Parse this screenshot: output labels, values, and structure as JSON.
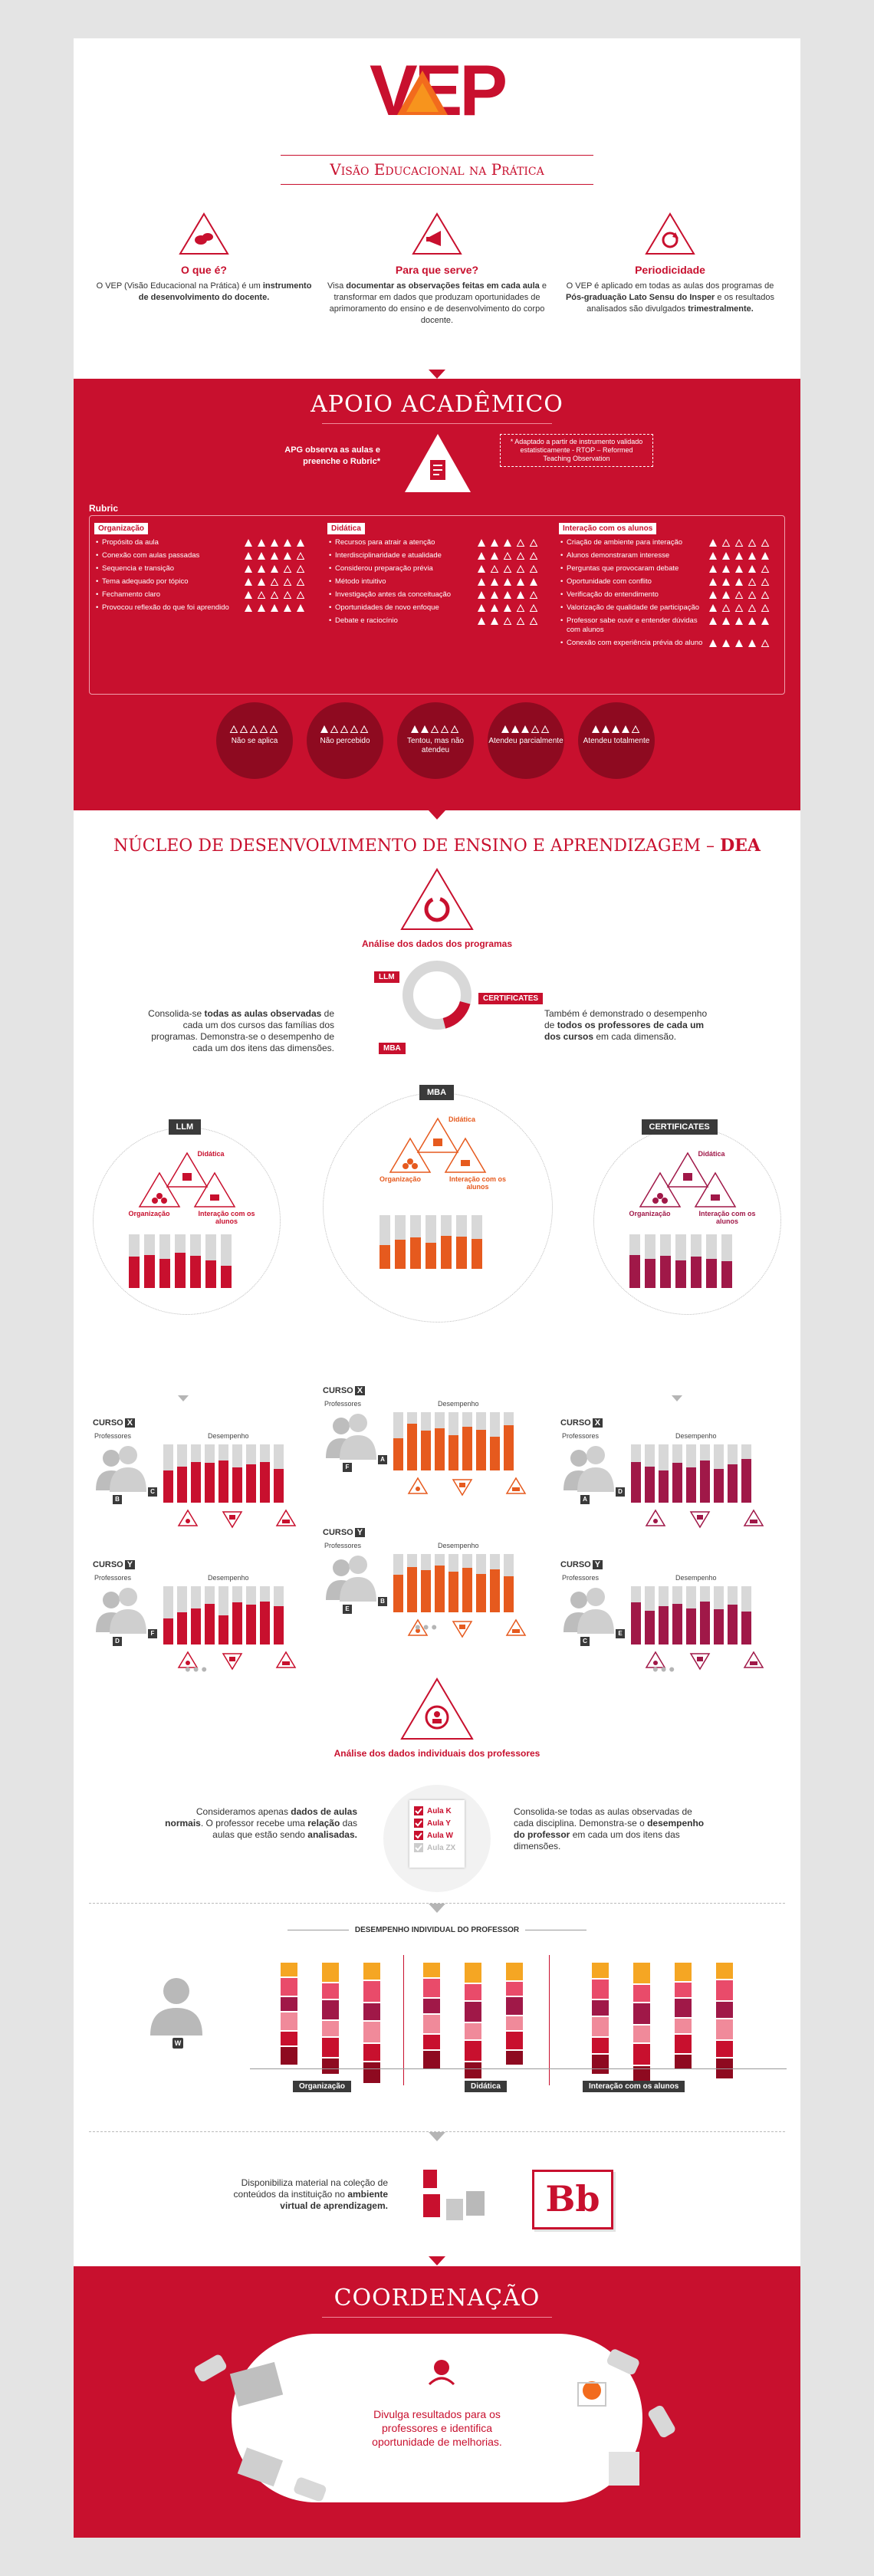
{
  "header": {
    "logo_text": "VEP",
    "subtitle": "Visão Educacional na Prática",
    "columns": [
      {
        "title": "O que é?",
        "text_plain": "O VEP (Visão Educacional na Prática) é um",
        "text_bold": "instrumento de desenvolvimento do docente.",
        "icon": "chat-bubbles-icon"
      },
      {
        "title": "Para que serve?",
        "text_1": "Visa",
        "text_bold": "documentar as observações feitas em cada aula",
        "text_2": "e transformar em dados que produzam oportunidades de aprimoramento do ensino e de desenvolvimento do corpo docente.",
        "icon": "megaphone-icon"
      },
      {
        "title": "Periodicidade",
        "text_1": "O VEP é aplicado em todas as aulas dos programas de",
        "text_bold": "Pós-graduação Lato Sensu do Insper",
        "text_2": "e os resultados analisados são divulgados",
        "text_bold2": "trimestralmente.",
        "icon": "cycle-icon"
      }
    ]
  },
  "apoio": {
    "title": "APOIO ACADÊMICO",
    "apg_text": "APG observa as aulas e preenche o Rubric*",
    "note": "* Adaptado a partir de instrumento validado estatisticamente - RTOP – Reformed Teaching Observation",
    "rubric_label": "Rubric",
    "columns": [
      {
        "header": "Organização",
        "items": [
          "Propósito da aula",
          "Conexão com aulas passadas",
          "Sequencia e transição",
          "Tema adequado por tópico",
          "Fechamento claro",
          "Provocou reflexão do que foi aprendido"
        ]
      },
      {
        "header": "Didática",
        "items": [
          "Recursos para atrair a atenção",
          "Interdisciplinaridade e atualidade",
          "Considerou preparação prévia",
          "Método intuitivo",
          "Investigação antes da conceituação",
          "Oportunidades de novo enfoque",
          "Debate e raciocínio"
        ]
      },
      {
        "header": "Interação com os alunos",
        "items": [
          "Criação de ambiente para interação",
          "Alunos demonstraram interesse",
          "Perguntas que provocaram debate",
          "Oportunidade com conflito",
          "Verificação do entendimento",
          "Valorização de qualidade de participação",
          "Professor sabe ouvir e entender dúvidas com alunos",
          "Conexão com experiência prévia do aluno"
        ]
      }
    ],
    "scale": [
      "Não se aplica",
      "Não percebido",
      "Tentou, mas não atendeu",
      "Atendeu parcialmente",
      "Atendeu totalmente"
    ]
  },
  "dea": {
    "title_plain": "NÚCLEO DE DESENVOLVIMENTO DE ENSINO E APRENDIZAGEM –",
    "title_bold": "DEA",
    "programs_title": "Análise dos dados dos programas",
    "ring_labels": [
      "LLM",
      "CERTIFICATES",
      "MBA"
    ],
    "left_text_1": "Consolida-se",
    "left_text_bold": "todas as aulas observadas",
    "left_text_2": "de cada um dos cursos das famílias dos programas. Demonstra-se o desempenho de cada um dos itens das dimensões.",
    "right_text_1": "Também é demonstrado o desempenho de",
    "right_text_bold": "todos os professores de cada um dos cursos",
    "right_text_2": "em cada dimensão.",
    "programs": [
      {
        "name": "LLM",
        "dims": [
          "Didática",
          "Organização",
          "Interação com os alunos"
        ]
      },
      {
        "name": "MBA",
        "dims": [
          "Didática",
          "Organização",
          "Interação com os alunos"
        ]
      },
      {
        "name": "CERTIFICATES",
        "dims": [
          "Didática",
          "Organização",
          "Interação com os alunos"
        ]
      }
    ],
    "curso_word": "CURSO",
    "curso_x": "X",
    "curso_y": "Y",
    "professores": "Professores",
    "desempenho": "Desempenho",
    "person_badges": [
      "B",
      "C",
      "A",
      "D",
      "F",
      "E"
    ],
    "indiv_title": "Análise dos dados individuais dos professores",
    "indiv_left_1": "Consideramos apenas",
    "indiv_left_bold": "dados de aulas normais",
    "indiv_left_2": ". O professor recebe uma",
    "indiv_left_bold2": "relação",
    "indiv_left_3": "das aulas que estão sendo",
    "indiv_left_bold3": "analisadas.",
    "indiv_right_1": "Consolida-se todas as aulas observadas de cada disciplina. Demonstra-se o",
    "indiv_right_bold": "desempenho do professor",
    "indiv_right_2": "em cada um dos itens das dimensões.",
    "aulas": [
      "Aula K",
      "Aula Y",
      "Aula W",
      "Aula ZX"
    ],
    "individual_title": "DESEMPENHO INDIVIDUAL DO PROFESSOR",
    "person_w": "W",
    "dim_labels": [
      "Organização",
      "Didática",
      "Interação com os alunos"
    ],
    "bb_text_1": "Disponibiliza material na coleção de conteúdos da instituição no",
    "bb_text_bold": "ambiente virtual de aprendizagem.",
    "bb_logo": "Bb"
  },
  "coordenacao": {
    "title": "COORDENAÇÃO",
    "text": "Divulga resultados para os professores e identifica oportunidade de melhorias."
  },
  "colors": {
    "red": "#c8102e",
    "dark_red": "#8e0a20",
    "orange": "#e65a1e",
    "wine": "#a01848",
    "yellow": "#f5a623",
    "pink": "#e94b6a",
    "grey": "#d8d8d8"
  }
}
